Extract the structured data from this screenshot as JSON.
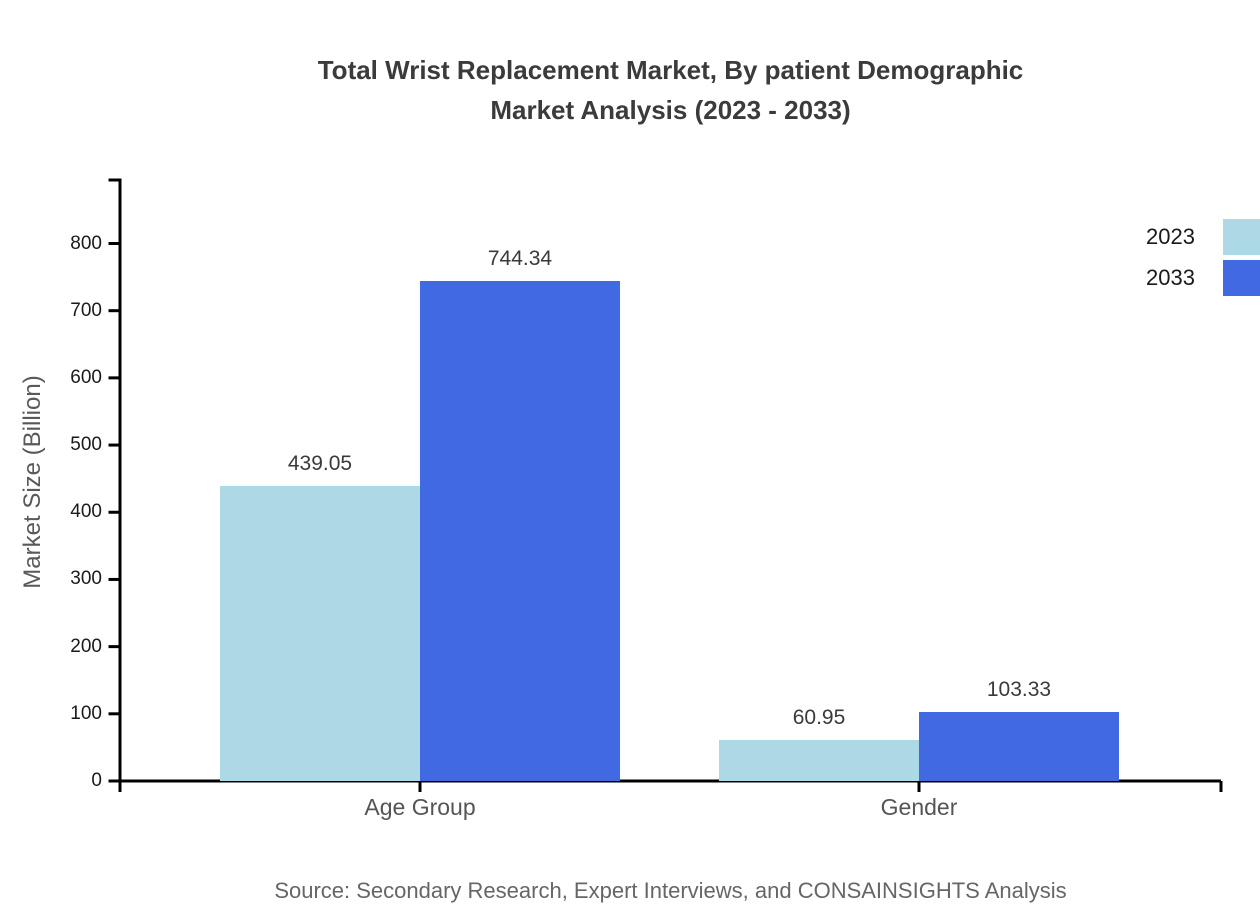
{
  "header": {
    "title_lines": [
      "Total Wrist Replacement Market, By patient Demographic",
      "Market Analysis (2023 - 2033)"
    ]
  },
  "footer": {
    "source": "Source: Secondary Research, Expert Interviews, and CONSAINSIGHTS Analysis"
  },
  "chart_data": {
    "type": "bar",
    "title": "Total Wrist Replacement Market, By patient Demographic Market Analysis (2023 - 2033)",
    "categories": [
      "Age Group",
      "Gender"
    ],
    "series": [
      {
        "name": "2023",
        "color": "#ADD8E6",
        "values": [
          439.05,
          60.95
        ]
      },
      {
        "name": "2033",
        "color": "#4169E1",
        "values": [
          744.34,
          103.33
        ]
      }
    ],
    "xlabel": "",
    "ylabel": "Market Size (Billion)",
    "ylim": [
      0,
      893
    ],
    "yticks": [
      0,
      100,
      200,
      300,
      400,
      500,
      600,
      700,
      800
    ],
    "grid": false,
    "legend_position": "top-right",
    "value_label_format": "0.00"
  },
  "colors": {
    "axis": "#000000",
    "title_text": "#3b3b3b",
    "axis_title_text": "#595959",
    "tick_text": "#1a1a1a",
    "category_text": "#555555",
    "source_text": "#666666"
  }
}
